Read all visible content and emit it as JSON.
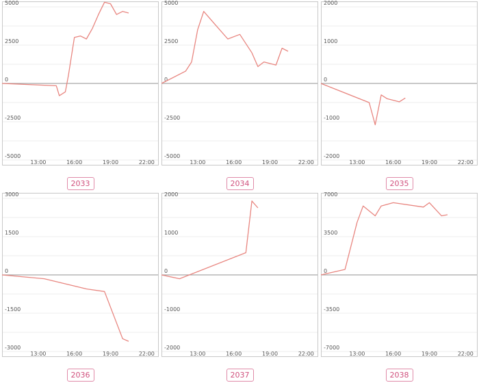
{
  "chart_data": [
    {
      "type": "line",
      "label": "2033",
      "x": [
        "10:00",
        "14:30",
        "14:45",
        "15:15",
        "15:30",
        "16:00",
        "16:30",
        "17:00",
        "17:30",
        "18:00",
        "18:30",
        "19:00",
        "19:30",
        "20:00",
        "20:30"
      ],
      "y": [
        0,
        -150,
        -800,
        -550,
        500,
        3000,
        3100,
        2900,
        3600,
        4500,
        5300,
        5200,
        4500,
        4700,
        4600
      ],
      "ylim": [
        -5000,
        5000
      ],
      "yticks": [
        -5000,
        -2500,
        0,
        2500,
        5000
      ],
      "yticklabels": [
        "-5000",
        "-2500",
        "0",
        "2500",
        "5000"
      ],
      "xticklabels": [
        "13:00",
        "16:00",
        "19:00",
        "22:00"
      ],
      "grid": true,
      "line_color": "#e8857f"
    },
    {
      "type": "line",
      "label": "2034",
      "x": [
        "10:00",
        "12:00",
        "12:30",
        "13:00",
        "13:30",
        "14:30",
        "15:30",
        "16:30",
        "17:30",
        "18:00",
        "18:30",
        "19:00",
        "19:30",
        "20:00",
        "20:30"
      ],
      "y": [
        0,
        800,
        1400,
        3500,
        4700,
        3800,
        2900,
        3200,
        2000,
        1100,
        1400,
        1300,
        1200,
        2300,
        2100
      ],
      "ylim": [
        -5000,
        5000
      ],
      "yticks": [
        -5000,
        -2500,
        0,
        2500,
        5000
      ],
      "yticklabels": [
        "-5000",
        "-2500",
        "0",
        "2500",
        "5000"
      ],
      "xticklabels": [
        "13:00",
        "16:00",
        "19:00",
        "22:00"
      ],
      "grid": true,
      "line_color": "#e8857f"
    },
    {
      "type": "line",
      "label": "2035",
      "x": [
        "10:00",
        "14:00",
        "14:30",
        "15:00",
        "15:30",
        "16:30",
        "17:00"
      ],
      "y": [
        0,
        -500,
        -1080,
        -300,
        -400,
        -480,
        -380
      ],
      "ylim": [
        -2000,
        2000
      ],
      "yticks": [
        -2000,
        -1000,
        0,
        1000,
        2000
      ],
      "yticklabels": [
        "-2000",
        "-1000",
        "0",
        "1000",
        "2000"
      ],
      "xticklabels": [
        "13:00",
        "16:00",
        "19:00",
        "22:00"
      ],
      "grid": true,
      "line_color": "#e8857f"
    },
    {
      "type": "line",
      "label": "2036",
      "x": [
        "10:00",
        "13:30",
        "17:00",
        "18:30",
        "20:00",
        "20:30"
      ],
      "y": [
        0,
        -150,
        -550,
        -650,
        -2500,
        -2600
      ],
      "ylim": [
        -3000,
        3000
      ],
      "yticks": [
        -3000,
        -1500,
        0,
        1500,
        3000
      ],
      "yticklabels": [
        "-3000",
        "-1500",
        "0",
        "1500",
        "3000"
      ],
      "xticklabels": [
        "13:00",
        "16:00",
        "19:00",
        "22:00"
      ],
      "grid": true,
      "line_color": "#e8857f"
    },
    {
      "type": "line",
      "label": "2037",
      "x": [
        "10:00",
        "11:30",
        "17:00",
        "17:30",
        "18:00"
      ],
      "y": [
        0,
        -100,
        580,
        1930,
        1750
      ],
      "ylim": [
        -2000,
        2000
      ],
      "yticks": [
        -2000,
        -1000,
        0,
        1000,
        2000
      ],
      "yticklabels": [
        "-2000",
        "-1000",
        "0",
        "1000",
        "2000"
      ],
      "xticklabels": [
        "13:00",
        "16:00",
        "19:00",
        "22:00"
      ],
      "grid": true,
      "line_color": "#e8857f"
    },
    {
      "type": "line",
      "label": "2038",
      "x": [
        "10:00",
        "12:00",
        "13:00",
        "13:30",
        "14:30",
        "15:00",
        "16:00",
        "18:30",
        "19:00",
        "20:00",
        "20:30"
      ],
      "y": [
        0,
        500,
        4800,
        6300,
        5400,
        6300,
        6600,
        6200,
        6600,
        5400,
        5500
      ],
      "ylim": [
        -7000,
        7000
      ],
      "yticks": [
        -7000,
        -3500,
        0,
        3500,
        7000
      ],
      "yticklabels": [
        "-7000",
        "-3500",
        "0",
        "3500",
        "7000"
      ],
      "xticklabels": [
        "13:00",
        "16:00",
        "19:00",
        "22:00"
      ],
      "grid": true,
      "line_color": "#e8857f"
    }
  ]
}
